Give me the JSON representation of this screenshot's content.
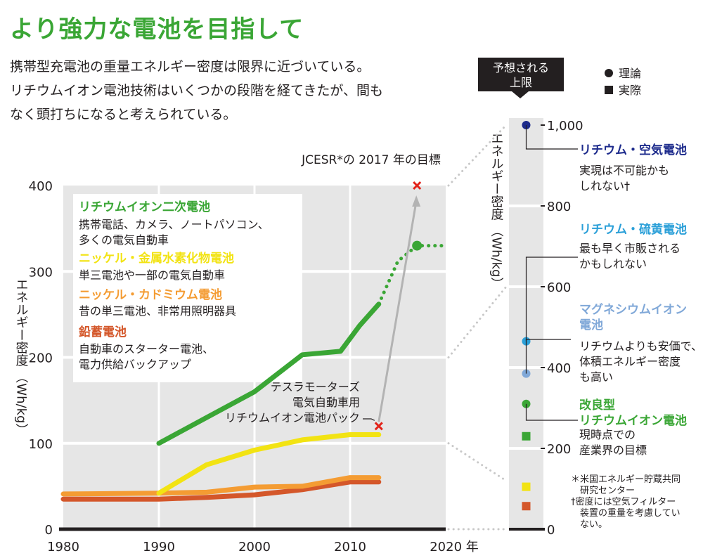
{
  "title": "より強力な電池を目指して",
  "lead": [
    "携帯型充電池の重量エネルギー密度は限界に近づいている。",
    "リチウムイオン電池技術はいくつかの段階を経てきたが、間も",
    "なく頭打ちになると考えられている。"
  ],
  "colors": {
    "li_ion": "#3aa635",
    "nimh": "#f2e313",
    "nicd": "#f49c33",
    "lead_acid": "#d4572a",
    "li_air": "#1d2b8c",
    "li_s": "#2a9fd8",
    "mg": "#80a8d8",
    "panel": "#e6e6e6",
    "target": "#e2231a"
  },
  "chart_data": [
    {
      "type": "line",
      "xlabel": "",
      "x_unit": "年",
      "ylabel": "エネルギー密度 （Wh/kg）",
      "xlim": [
        1980,
        2020
      ],
      "ylim": [
        0,
        400
      ],
      "xticks": [
        1980,
        1990,
        2000,
        2010,
        2020
      ],
      "yticks": [
        0,
        100,
        200,
        300,
        400
      ],
      "grid": true,
      "series": [
        {
          "name": "リチウムイオン二次電池",
          "description": "携帯電話、カメラ、ノートパソコン、多くの電気自動車",
          "color_key": "li_ion",
          "points": [
            [
              1990,
              100
            ],
            [
              1995,
              130
            ],
            [
              2000,
              160
            ],
            [
              2005,
              203
            ],
            [
              2009,
              207
            ],
            [
              2011,
              237
            ],
            [
              2013,
              262
            ]
          ],
          "projection": [
            [
              2013,
              262
            ],
            [
              2015,
              312
            ],
            [
              2017,
              330
            ],
            [
              2020,
              330
            ]
          ]
        },
        {
          "name": "ニッケル・金属水素化物電池",
          "description": "単三電池や一部の電気自動車",
          "color_key": "nimh",
          "points": [
            [
              1990,
              42
            ],
            [
              1995,
              75
            ],
            [
              2000,
              92
            ],
            [
              2005,
              104
            ],
            [
              2010,
              110
            ],
            [
              2013,
              110
            ]
          ]
        },
        {
          "name": "ニッケル・カドミウム電池",
          "description": "昔の単三電池、非常用照明器具",
          "color_key": "nicd",
          "points": [
            [
              1980,
              41
            ],
            [
              1990,
              42
            ],
            [
              1995,
              43
            ],
            [
              2000,
              49
            ],
            [
              2005,
              50
            ],
            [
              2010,
              60
            ],
            [
              2013,
              60
            ]
          ]
        },
        {
          "name": "鉛蓄電池",
          "description": "自動車のスターター電池、電力供給バックアップ",
          "color_key": "lead_acid",
          "points": [
            [
              1980,
              35
            ],
            [
              1990,
              35
            ],
            [
              1995,
              37
            ],
            [
              2000,
              40
            ],
            [
              2005,
              46
            ],
            [
              2010,
              55
            ],
            [
              2013,
              55
            ]
          ]
        }
      ],
      "markers": [
        {
          "label_lines": [
            "テスラモーターズ",
            "電気自動車用",
            "リチウムイオン電池パック"
          ],
          "x": 2013,
          "y": 120
        },
        {
          "label_lines": [
            "JCESR*の 2017 年の目標"
          ],
          "x": 2017,
          "y": 400
        }
      ]
    },
    {
      "type": "scatter",
      "ylabel": "エネルギー密度 （Wh/kg）",
      "ylim": [
        0,
        1000
      ],
      "yticks": [
        0,
        200,
        400,
        600,
        800,
        1000
      ],
      "legend": {
        "header": [
          "予想される",
          "上限"
        ],
        "theory": "理論",
        "actual": "実際"
      },
      "points": [
        {
          "name": "リチウム・空気電池",
          "kind": "theory",
          "value": 1000,
          "color_key": "li_air"
        },
        {
          "name": "マグネシウムイオン電池",
          "kind": "theory",
          "value": 465,
          "color_key": "li_s"
        },
        {
          "name": "",
          "kind": "theory",
          "value": 385,
          "color_key": "mg"
        },
        {
          "name": "改良型リチウムイオン電池",
          "kind": "theory",
          "value": 310,
          "color_key": "li_ion"
        },
        {
          "name": "",
          "kind": "actual",
          "value": 230,
          "color_key": "li_ion"
        },
        {
          "name": "",
          "kind": "actual",
          "value": 105,
          "color_key": "nimh"
        },
        {
          "name": "",
          "kind": "actual",
          "value": 57,
          "color_key": "lead_acid"
        }
      ],
      "annotations": [
        {
          "title": "リチウム・空気電池",
          "color_key": "li_air",
          "body": [
            "実現は不可能かも",
            "しれない†"
          ]
        },
        {
          "title": "リチウム・硫黄電池",
          "color_key": "li_s",
          "body": [
            "最も早く市販される",
            "かもしれない"
          ]
        },
        {
          "title": "マグネシウムイオン\n電池",
          "color_key": "mg",
          "body": [
            "リチウムよりも安価で、",
            "体積エネルギー密度",
            "も高い"
          ]
        },
        {
          "title": "改良型\nリチウムイオン電池",
          "color_key": "li_ion",
          "body": [
            "現時点での",
            "産業界の目標"
          ]
        }
      ]
    }
  ],
  "footnotes": [
    "＊米国エネルギー貯蔵共同",
    "　研究センター",
    "†密度には空気フィルター",
    "　装置の重量を考慮してい",
    "　ない。"
  ]
}
